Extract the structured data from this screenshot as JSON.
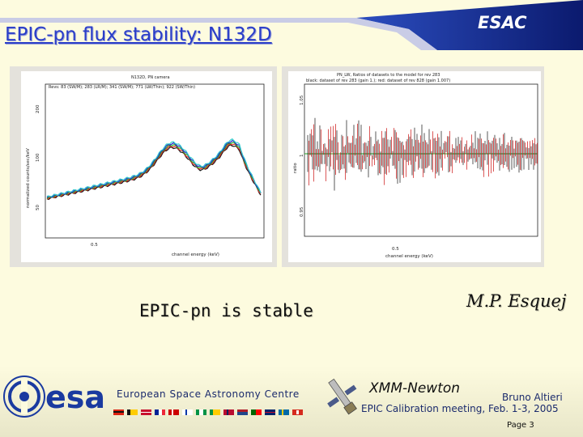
{
  "header": {
    "title": "EPIC-pn flux stability: N132D",
    "org": "ESAC"
  },
  "plots": [
    {
      "title": "N132D, PN camera",
      "legend": "Revs: 83 (SW/M); 283 (LR/M); 341 (SW/M); 771 (LW/Thin); 922 (SW/Thin)",
      "xlabel": "channel energy (keV)",
      "ylabel": "normalized counts/sec/keV",
      "xtick": "0.5",
      "yticks": [
        "50",
        "100",
        "200"
      ]
    },
    {
      "title": "PN_LW, Ratios of datasets to the model for rev 283",
      "subtitle": "black: dataset of rev 283 (gain 1.); red: dataset of rev 828 (gain 1.007)",
      "xlabel": "channel energy (keV)",
      "ylabel": "ratio",
      "xtick": "0.5",
      "yticks": [
        "1.05",
        "1",
        "0.95"
      ]
    }
  ],
  "main": {
    "statement": "EPIC-pn is stable",
    "author": "M.P. Esquej"
  },
  "footer": {
    "logo_text": "esa",
    "centre_name": "European Space Astronomy Centre",
    "mission": "XMM-Newton",
    "presenter": "Bruno Altieri",
    "meeting": "EPIC Calibration meeting, Feb. 1-3, 2005",
    "page": "Page 3"
  },
  "colors": {
    "title": "#2a3dc8",
    "header_band": "#1c3aa8",
    "background": "#fdfbdf"
  }
}
